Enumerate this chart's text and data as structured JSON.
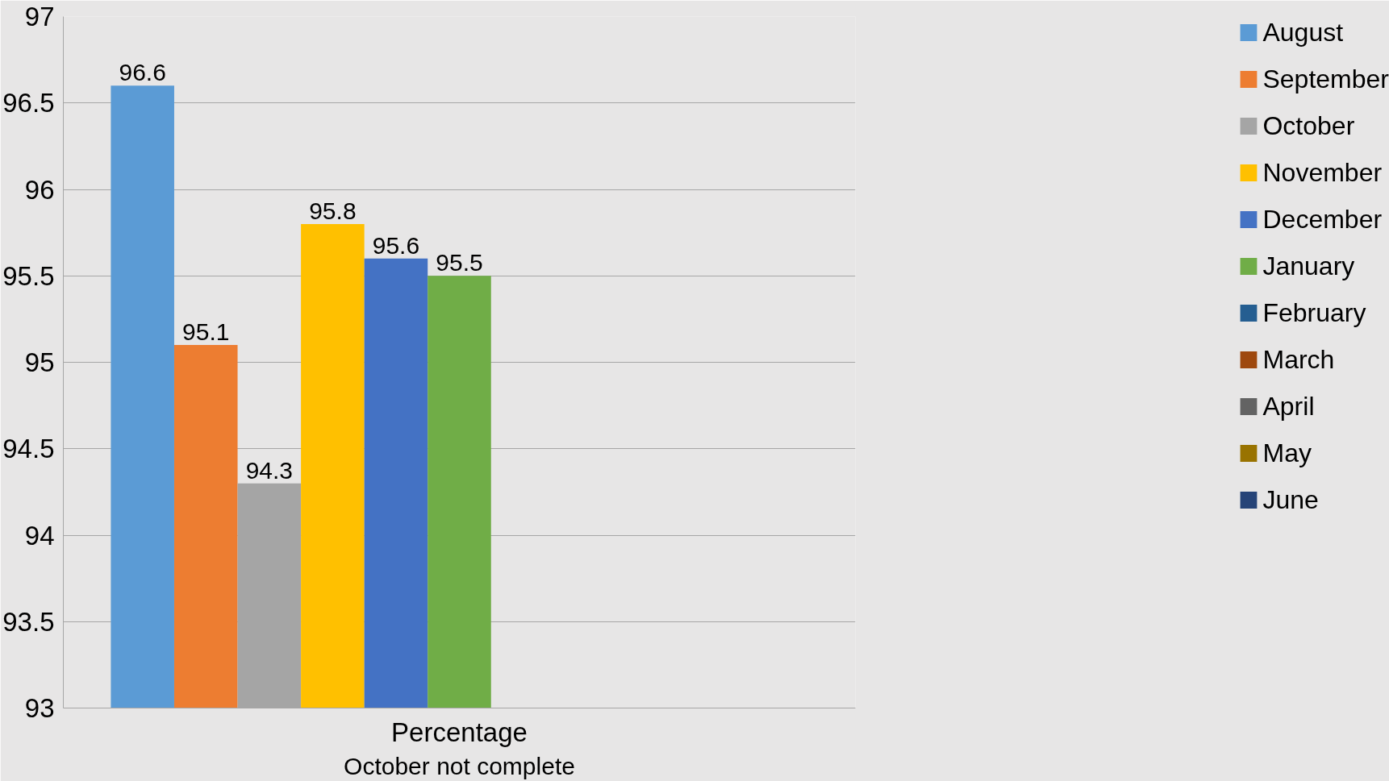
{
  "chart_data": {
    "type": "bar",
    "xlabel": "October not complete",
    "categories": [
      "Percentage"
    ],
    "series": [
      {
        "name": "August",
        "color": "#5b9bd5",
        "values": [
          96.6
        ]
      },
      {
        "name": "September",
        "color": "#ed7d31",
        "values": [
          95.1
        ]
      },
      {
        "name": "October",
        "color": "#a5a5a5",
        "values": [
          94.3
        ]
      },
      {
        "name": "November",
        "color": "#ffc000",
        "values": [
          95.8
        ]
      },
      {
        "name": "December",
        "color": "#4472c4",
        "values": [
          95.6
        ]
      },
      {
        "name": "January",
        "color": "#70ad47",
        "values": [
          95.5
        ]
      },
      {
        "name": "February",
        "color": "#255e91",
        "values": [
          null
        ]
      },
      {
        "name": "March",
        "color": "#9e480e",
        "values": [
          null
        ]
      },
      {
        "name": "April",
        "color": "#636363",
        "values": [
          null
        ]
      },
      {
        "name": "May",
        "color": "#997300",
        "values": [
          null
        ]
      },
      {
        "name": "June",
        "color": "#264478",
        "values": [
          null
        ]
      }
    ],
    "ylim": [
      93,
      97
    ],
    "yticks": [
      93,
      93.5,
      94,
      94.5,
      95,
      95.5,
      96,
      96.5,
      97
    ],
    "grid": "y",
    "legend": "right",
    "data_labels": true
  }
}
